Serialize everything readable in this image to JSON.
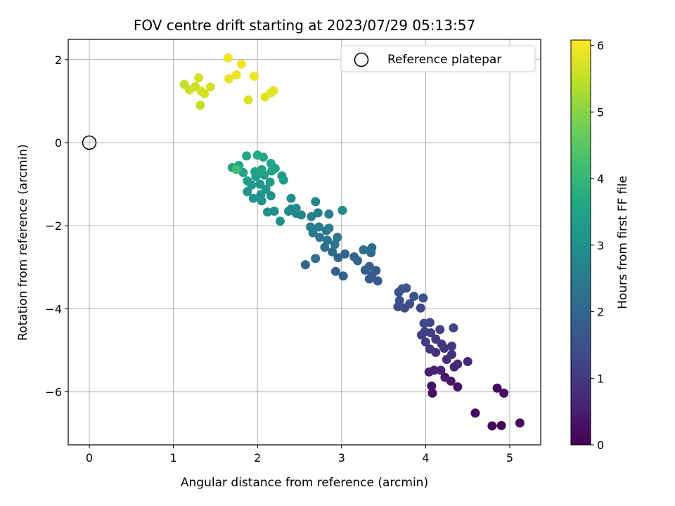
{
  "chart_data": {
    "type": "scatter",
    "title": "FOV centre drift starting at 2023/07/29 05:13:57",
    "xlabel": "Angular distance from reference (arcmin)",
    "ylabel": "Rotation from reference (arcmin)",
    "xlim": [
      -0.25,
      5.4
    ],
    "ylim": [
      -7.25,
      2.5
    ],
    "xticks": [
      0,
      1,
      2,
      3,
      4,
      5
    ],
    "xtick_labels": [
      "0",
      "1",
      "2",
      "3",
      "4",
      "5"
    ],
    "yticks": [
      2,
      0,
      -2,
      -4,
      -6
    ],
    "ytick_labels": [
      "2",
      "0",
      "−2",
      "−4",
      "−6"
    ],
    "grid": true,
    "legend_position": "top-right",
    "reference": {
      "label": "Reference platepar",
      "x": 0,
      "y": 0
    },
    "colorbar": {
      "label": "Hours from first FF file",
      "colormap": "viridis",
      "range": [
        0,
        6.08
      ],
      "ticks": [
        0,
        1,
        2,
        3,
        4,
        5,
        6
      ],
      "tick_labels": [
        "0",
        "1",
        "2",
        "3",
        "4",
        "5",
        "6"
      ]
    },
    "points": [
      [
        4.79,
        -6.82,
        0.02
      ],
      [
        4.9,
        -6.81,
        0.05
      ],
      [
        5.12,
        -6.75,
        0.08
      ],
      [
        4.59,
        -6.51,
        0.12
      ],
      [
        4.85,
        -5.91,
        0.16
      ],
      [
        4.93,
        -6.03,
        0.2
      ],
      [
        4.08,
        -6.03,
        0.25
      ],
      [
        4.07,
        -5.86,
        0.3
      ],
      [
        4.38,
        -5.88,
        0.35
      ],
      [
        4.3,
        -5.74,
        0.4
      ],
      [
        4.23,
        -5.65,
        0.45
      ],
      [
        4.04,
        -5.52,
        0.5
      ],
      [
        4.1,
        -5.48,
        0.55
      ],
      [
        4.18,
        -5.48,
        0.6
      ],
      [
        4.34,
        -5.4,
        0.65
      ],
      [
        4.38,
        -5.33,
        0.7
      ],
      [
        4.5,
        -5.27,
        0.75
      ],
      [
        4.25,
        -5.22,
        0.8
      ],
      [
        4.31,
        -5.1,
        0.85
      ],
      [
        4.12,
        -5.05,
        0.88
      ],
      [
        4.22,
        -4.95,
        0.92
      ],
      [
        4.31,
        -4.9,
        0.95
      ],
      [
        4.05,
        -4.97,
        0.98
      ],
      [
        4.19,
        -4.85,
        1.0
      ],
      [
        4.12,
        -4.73,
        1.03
      ],
      [
        4.0,
        -4.8,
        1.06
      ],
      [
        3.95,
        -4.63,
        1.1
      ],
      [
        4.06,
        -4.58,
        1.13
      ],
      [
        3.99,
        -4.55,
        1.16
      ],
      [
        4.17,
        -4.5,
        1.2
      ],
      [
        4.33,
        -4.46,
        1.23
      ],
      [
        4.05,
        -4.33,
        1.26
      ],
      [
        3.98,
        -4.35,
        1.3
      ],
      [
        3.94,
        -3.98,
        1.33
      ],
      [
        3.75,
        -3.98,
        1.37
      ],
      [
        3.67,
        -3.95,
        1.4
      ],
      [
        3.81,
        -3.88,
        1.43
      ],
      [
        3.69,
        -3.8,
        1.46
      ],
      [
        3.97,
        -3.74,
        1.5
      ],
      [
        3.86,
        -3.7,
        1.53
      ],
      [
        3.68,
        -3.6,
        1.56
      ],
      [
        3.72,
        -3.52,
        1.6
      ],
      [
        3.77,
        -3.5,
        1.63
      ],
      [
        3.43,
        -3.33,
        1.66
      ],
      [
        3.33,
        -3.28,
        1.7
      ],
      [
        3.36,
        -3.2,
        1.73
      ],
      [
        3.41,
        -3.08,
        1.76
      ],
      [
        3.28,
        -3.07,
        1.8
      ],
      [
        3.33,
        -2.98,
        1.83
      ],
      [
        3.02,
        -3.21,
        1.86
      ],
      [
        2.93,
        -3.1,
        1.9
      ],
      [
        2.57,
        -2.94,
        1.93
      ],
      [
        3.19,
        -2.84,
        1.96
      ],
      [
        3.15,
        -2.75,
        2.0
      ],
      [
        3.04,
        -2.68,
        2.03
      ],
      [
        2.96,
        -2.77,
        2.06
      ],
      [
        2.89,
        -2.63,
        2.1
      ],
      [
        3.35,
        -2.65,
        2.13
      ],
      [
        3.26,
        -2.58,
        2.16
      ],
      [
        3.36,
        -2.53,
        2.2
      ],
      [
        2.69,
        -2.79,
        2.23
      ],
      [
        2.8,
        -2.52,
        2.26
      ],
      [
        2.92,
        -2.45,
        2.3
      ],
      [
        2.83,
        -2.35,
        2.33
      ],
      [
        2.74,
        -2.28,
        2.36
      ],
      [
        2.95,
        -2.28,
        2.4
      ],
      [
        2.66,
        -2.17,
        2.43
      ],
      [
        2.82,
        -2.12,
        2.46
      ],
      [
        2.73,
        -2.03,
        2.5
      ],
      [
        2.63,
        -2.03,
        2.53
      ],
      [
        2.85,
        -2.06,
        2.56
      ],
      [
        2.85,
        -1.72,
        2.6
      ],
      [
        2.64,
        -1.78,
        2.63
      ],
      [
        2.72,
        -1.69,
        2.66
      ],
      [
        2.52,
        -1.74,
        2.7
      ],
      [
        2.46,
        -1.7,
        2.73
      ],
      [
        2.69,
        -1.42,
        2.76
      ],
      [
        2.4,
        -1.6,
        2.8
      ],
      [
        2.37,
        -1.65,
        2.83
      ],
      [
        3.01,
        -1.63,
        2.86
      ],
      [
        2.46,
        -1.58,
        2.9
      ],
      [
        2.4,
        -1.34,
        2.93
      ],
      [
        2.2,
        -1.65,
        2.96
      ],
      [
        2.12,
        -1.67,
        3.0
      ],
      [
        2.27,
        -1.89,
        3.02
      ],
      [
        2.05,
        -1.4,
        3.05
      ],
      [
        2.16,
        -1.28,
        3.08
      ],
      [
        1.95,
        -1.34,
        3.1
      ],
      [
        2.04,
        -1.25,
        3.13
      ],
      [
        1.88,
        -1.18,
        3.16
      ],
      [
        2.1,
        -1.12,
        3.2
      ],
      [
        1.93,
        -1.02,
        3.22
      ],
      [
        2.03,
        -1.0,
        3.25
      ],
      [
        2.15,
        -0.95,
        3.28
      ],
      [
        2.31,
        -0.9,
        3.3
      ],
      [
        2.29,
        -0.8,
        3.32
      ],
      [
        1.88,
        -0.92,
        3.35
      ],
      [
        1.98,
        -0.82,
        3.38
      ],
      [
        2.08,
        -0.78,
        3.4
      ],
      [
        1.83,
        -0.72,
        3.42
      ],
      [
        1.97,
        -0.7,
        3.45
      ],
      [
        2.05,
        -0.65,
        3.47
      ],
      [
        2.17,
        -0.68,
        3.5
      ],
      [
        2.21,
        -0.62,
        3.52
      ],
      [
        1.7,
        -0.6,
        3.55
      ],
      [
        1.78,
        -0.55,
        3.58
      ],
      [
        2.16,
        -0.5,
        3.6
      ],
      [
        1.87,
        -0.32,
        3.62
      ],
      [
        2.0,
        -0.3,
        3.65
      ],
      [
        2.07,
        -0.35,
        3.68
      ],
      [
        1.75,
        -0.65,
        4.2
      ],
      [
        1.32,
        0.9,
        5.5
      ],
      [
        1.13,
        1.4,
        5.55
      ],
      [
        1.19,
        1.27,
        5.6
      ],
      [
        1.26,
        1.35,
        5.62
      ],
      [
        1.3,
        1.56,
        5.65
      ],
      [
        1.33,
        1.24,
        5.68
      ],
      [
        1.37,
        1.18,
        5.7
      ],
      [
        1.44,
        1.34,
        5.72
      ],
      [
        1.89,
        1.03,
        5.75
      ],
      [
        2.09,
        1.1,
        5.78
      ],
      [
        2.16,
        1.2,
        5.8
      ],
      [
        2.19,
        1.25,
        5.83
      ],
      [
        1.66,
        1.54,
        5.85
      ],
      [
        1.75,
        1.63,
        5.88
      ],
      [
        1.96,
        1.6,
        5.9
      ],
      [
        1.81,
        1.89,
        5.95
      ],
      [
        1.65,
        2.04,
        6.0
      ]
    ]
  }
}
